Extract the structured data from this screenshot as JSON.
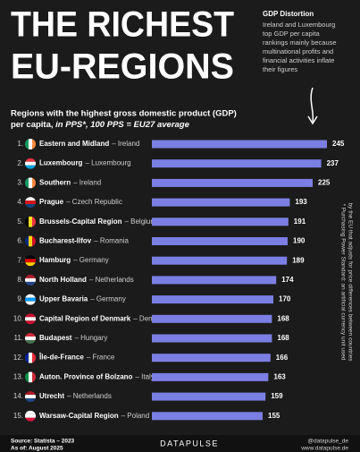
{
  "chart_data": {
    "type": "bar",
    "title_line1": "THE RICHEST",
    "title_line2": "EU-REGIONS",
    "note_title": "GDP Distortion",
    "note_lines": [
      "Ireland and Luxembourg",
      "top GDP per capita",
      "rankings mainly because",
      "multinational profits and",
      "financial activities inflate",
      "their figures"
    ],
    "subtitle_line1": "Regions with the highest gross domestic product (GDP)",
    "subtitle_line2_plain": "per capita, ",
    "subtitle_line2_italic": "in PPS*, 100 PPS = EU27 average",
    "ranks": [
      "1.",
      "2.",
      "3.",
      "4.",
      "5.",
      "6.",
      "7.",
      "8.",
      "9.",
      "10.",
      "11.",
      "12.",
      "13.",
      "14.",
      "15."
    ],
    "categories": [
      "Eastern and Midland",
      "Luxembourg",
      "Southern",
      "Prague",
      "Brussels-Capital Region",
      "Bucharest-Ilfov",
      "Hamburg",
      "North Holland",
      "Upper Bavaria",
      "Capital Region of Denmark",
      "Budapest",
      "Île-de-France",
      "Auton. Province of Bolzano",
      "Utrecht",
      "Warsaw-Capital Region"
    ],
    "countries": [
      "– Ireland",
      "– Luxembourg",
      "– Ireland",
      "– Czech Republic",
      "– Belgium",
      "– Romania",
      "– Germany",
      "– Netherlands",
      "– Germany",
      "– Denmark",
      "– Hungary",
      "– France",
      "– Italy",
      "– Netherlands",
      "– Poland"
    ],
    "values": [
      245,
      237,
      225,
      193,
      191,
      190,
      189,
      174,
      170,
      168,
      168,
      166,
      163,
      159,
      155
    ],
    "color": "#7b7fe3",
    "footnote_lines": [
      "* Purchasing Power Standard: an artificial currency unit used",
      "by the EU that adjusts for price differences between countries"
    ],
    "source": "Source: Statista – 2023",
    "as_of": "As of: August 2025",
    "brand": "DATAPULSE",
    "handle": "@datapulse_de",
    "website": "www.datapulse.de"
  }
}
